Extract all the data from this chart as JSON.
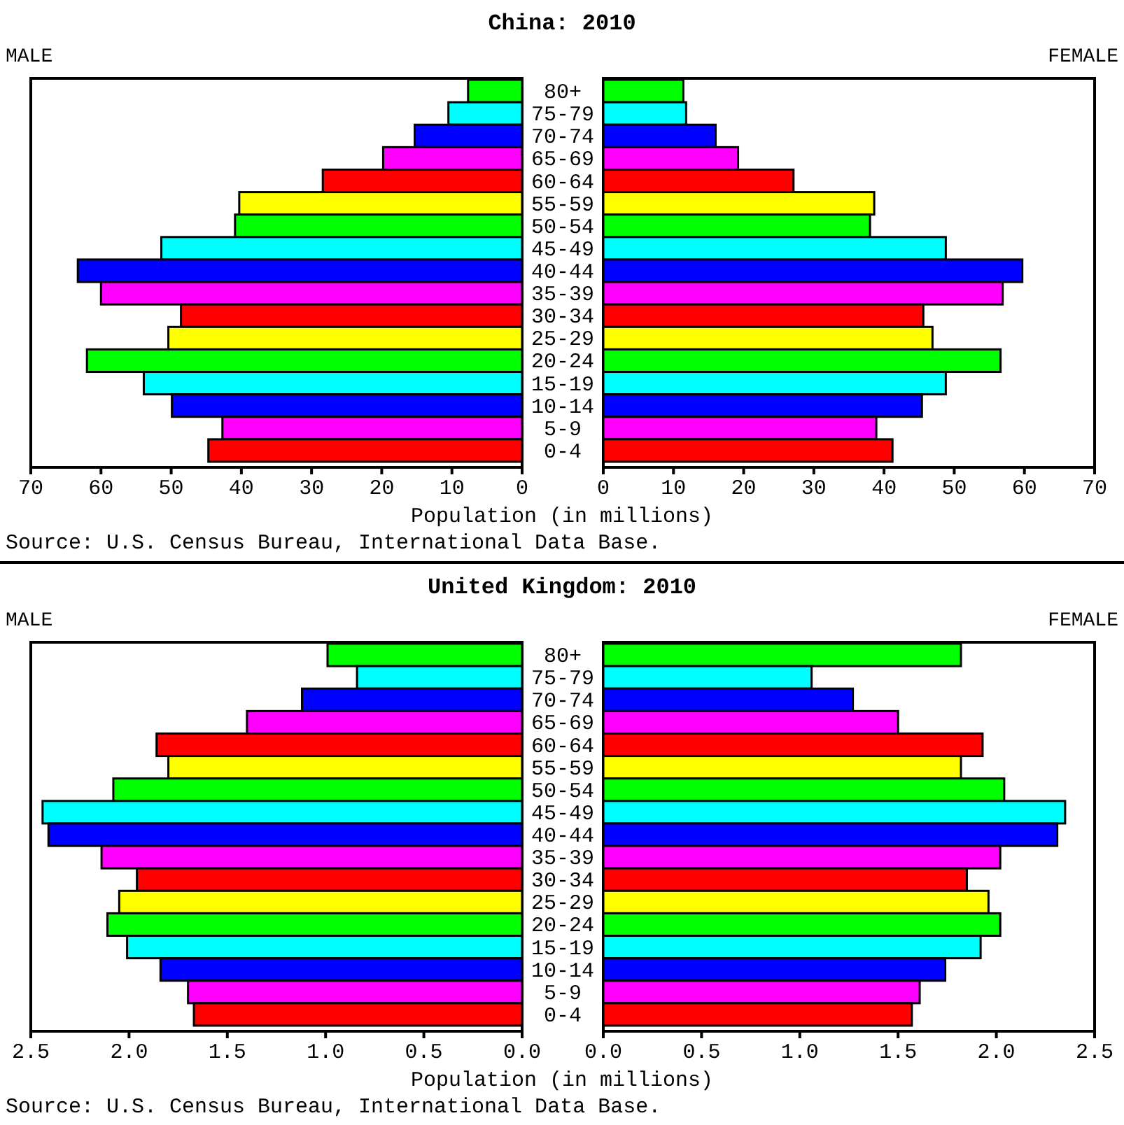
{
  "chart_data": [
    {
      "type": "bar",
      "orientation": "horizontal",
      "title": "China: 2010",
      "xlabel": "Population (in millions)",
      "annotations": [
        "Source: U.S. Census Bureau, International Data Base."
      ],
      "categories": [
        "80+",
        "75-79",
        "70-74",
        "65-69",
        "60-64",
        "55-59",
        "50-54",
        "45-49",
        "40-44",
        "35-39",
        "30-34",
        "25-29",
        "20-24",
        "15-19",
        "10-14",
        "5-9",
        "0-4"
      ],
      "colors": [
        "#00ff00",
        "#00ffff",
        "#0000ff",
        "#ff00ff",
        "#ff0000",
        "#ffff00",
        "#00ff00",
        "#00ffff",
        "#0000ff",
        "#ff00ff",
        "#ff0000",
        "#ffff00",
        "#00ff00",
        "#00ffff",
        "#0000ff",
        "#ff00ff",
        "#ff0000"
      ],
      "series": [
        {
          "name": "MALE",
          "values": [
            7.7,
            10.5,
            15.3,
            19.8,
            28.4,
            40.3,
            40.9,
            51.4,
            63.3,
            60.0,
            48.6,
            50.4,
            62.0,
            53.9,
            49.9,
            42.7,
            44.7
          ]
        }
      ],
      "xlim": [
        70,
        0
      ],
      "xticks": [
        70,
        60,
        50,
        40,
        30,
        20,
        10,
        0
      ]
    },
    {
      "type": "bar",
      "orientation": "horizontal",
      "tick_labels": "x",
      "categories": [
        "80+",
        "75-79",
        "70-74",
        "65-69",
        "60-64",
        "55-59",
        "50-54",
        "45-49",
        "40-44",
        "35-39",
        "30-34",
        "25-29",
        "20-24",
        "15-19",
        "10-14",
        "5-9",
        "0-4"
      ],
      "colors": [
        "#00ff00",
        "#00ffff",
        "#0000ff",
        "#ff00ff",
        "#ff0000",
        "#ffff00",
        "#00ff00",
        "#00ffff",
        "#0000ff",
        "#ff00ff",
        "#ff0000",
        "#ffff00",
        "#00ff00",
        "#00ffff",
        "#0000ff",
        "#ff00ff",
        "#ff0000"
      ],
      "series": [
        {
          "name": "FEMALE",
          "values": [
            11.4,
            11.8,
            16.0,
            19.2,
            27.1,
            38.6,
            38.0,
            48.8,
            59.7,
            56.9,
            45.6,
            46.9,
            56.6,
            48.8,
            45.4,
            38.9,
            41.2
          ]
        }
      ],
      "xlim": [
        0,
        70
      ],
      "xticks": [
        0,
        10,
        20,
        30,
        40,
        50,
        60,
        70
      ]
    },
    {
      "type": "bar",
      "orientation": "horizontal",
      "title": "United Kingdom: 2010",
      "xlabel": "Population (in millions)",
      "annotations": [
        "Source: U.S. Census Bureau, International Data Base."
      ],
      "categories": [
        "80+",
        "75-79",
        "70-74",
        "65-69",
        "60-64",
        "55-59",
        "50-54",
        "45-49",
        "40-44",
        "35-39",
        "30-34",
        "25-29",
        "20-24",
        "15-19",
        "10-14",
        "5-9",
        "0-4"
      ],
      "colors": [
        "#00ff00",
        "#00ffff",
        "#0000ff",
        "#ff00ff",
        "#ff0000",
        "#ffff00",
        "#00ff00",
        "#00ffff",
        "#0000ff",
        "#ff00ff",
        "#ff0000",
        "#ffff00",
        "#00ff00",
        "#00ffff",
        "#0000ff",
        "#ff00ff",
        "#ff0000"
      ],
      "series": [
        {
          "name": "MALE",
          "values": [
            0.99,
            0.84,
            1.12,
            1.4,
            1.86,
            1.8,
            2.08,
            2.44,
            2.41,
            2.14,
            1.96,
            2.05,
            2.11,
            2.01,
            1.84,
            1.7,
            1.67
          ]
        }
      ],
      "xlim": [
        2.5,
        0
      ],
      "xticks": [
        2.5,
        {
          "value": 2,
          "label": "2.0"
        },
        1.5,
        {
          "value": 1,
          "label": "1.0"
        },
        0.5,
        {
          "value": 0,
          "label": "0.0"
        }
      ]
    },
    {
      "type": "bar",
      "orientation": "horizontal",
      "tick_labels": "x",
      "categories": [
        "80+",
        "75-79",
        "70-74",
        "65-69",
        "60-64",
        "55-59",
        "50-54",
        "45-49",
        "40-44",
        "35-39",
        "30-34",
        "25-29",
        "20-24",
        "15-19",
        "10-14",
        "5-9",
        "0-4"
      ],
      "colors": [
        "#00ff00",
        "#00ffff",
        "#0000ff",
        "#ff00ff",
        "#ff0000",
        "#ffff00",
        "#00ff00",
        "#00ffff",
        "#0000ff",
        "#ff00ff",
        "#ff0000",
        "#ffff00",
        "#00ff00",
        "#00ffff",
        "#0000ff",
        "#ff00ff",
        "#ff0000"
      ],
      "series": [
        {
          "name": "FEMALE",
          "values": [
            1.82,
            1.06,
            1.27,
            1.5,
            1.93,
            1.82,
            2.04,
            2.35,
            2.31,
            2.02,
            1.85,
            1.96,
            2.02,
            1.92,
            1.74,
            1.61,
            1.57
          ]
        }
      ],
      "xlim": [
        0,
        2.5
      ],
      "xticks": [
        {
          "value": 0,
          "label": "0.0"
        },
        0.5,
        {
          "value": 1,
          "label": "1.0"
        },
        1.5,
        {
          "value": 2,
          "label": "2.0"
        },
        2.5
      ]
    }
  ]
}
